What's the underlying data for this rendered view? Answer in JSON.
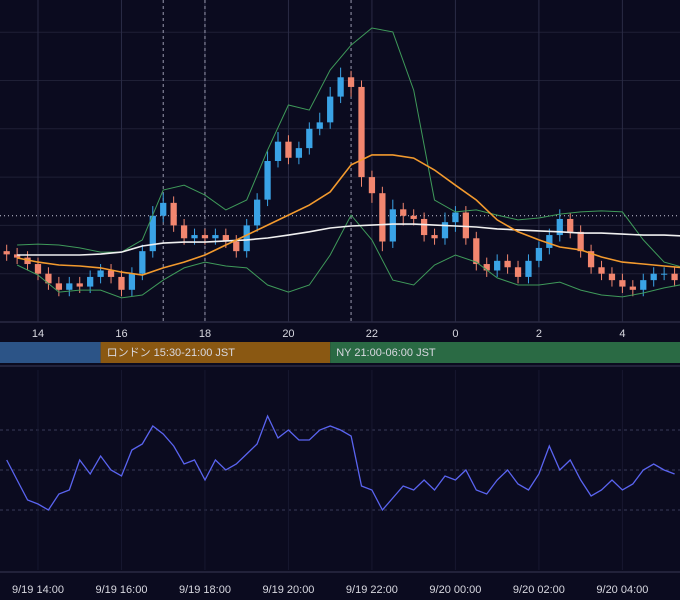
{
  "chart_data": [
    {
      "type": "candlestick",
      "xlim": [
        13.09,
        29.38
      ],
      "ylim": [
        0,
        100
      ],
      "xticks": [
        14,
        16,
        18,
        20,
        22,
        {
          "value": 24,
          "label": "0"
        },
        {
          "value": 26,
          "label": "2"
        },
        {
          "value": 28,
          "label": "4"
        }
      ],
      "ygrid": [
        15,
        30,
        45,
        60,
        75,
        90
      ],
      "grid": true,
      "markers_x": [
        17,
        18,
        21.5
      ],
      "price_line": 33,
      "up_color": "#3aa3e6",
      "down_color": "#f2866f",
      "x": [
        13.25,
        13.5,
        13.75,
        14,
        14.25,
        14.5,
        14.75,
        15,
        15.25,
        15.5,
        15.75,
        16,
        16.25,
        16.5,
        16.75,
        17,
        17.25,
        17.5,
        17.75,
        18,
        18.25,
        18.5,
        18.75,
        19,
        19.25,
        19.5,
        19.75,
        20,
        20.25,
        20.5,
        20.75,
        21,
        21.25,
        21.5,
        21.75,
        22,
        22.25,
        22.5,
        22.75,
        23,
        23.25,
        23.5,
        23.75,
        24,
        24.25,
        24.5,
        24.75,
        25,
        25.25,
        25.5,
        25.75,
        26,
        26.25,
        26.5,
        26.75,
        27,
        27.25,
        27.5,
        27.75,
        28,
        28.25,
        28.5,
        28.75,
        29,
        29.25
      ],
      "open": [
        22,
        21,
        20,
        18,
        15,
        12,
        10,
        12,
        11,
        14,
        16,
        14,
        10,
        15,
        22,
        33,
        37,
        30,
        26,
        27,
        26,
        27,
        25,
        22,
        30,
        38,
        50,
        56,
        51,
        54,
        60,
        62,
        70,
        76,
        73,
        45,
        40,
        25,
        35,
        33,
        32,
        27,
        26,
        31,
        34,
        26,
        18,
        16,
        19,
        17,
        14,
        19,
        23,
        27,
        32,
        28,
        22,
        17,
        15,
        13,
        11,
        10,
        13,
        15,
        15
      ],
      "high": [
        24,
        23,
        22,
        20,
        17,
        14,
        14,
        14,
        16,
        18,
        18,
        16,
        17,
        24,
        36,
        40,
        39,
        32,
        29,
        29,
        29,
        29,
        27,
        32,
        40,
        53,
        59,
        58,
        56,
        62,
        65,
        73,
        79,
        78,
        75,
        47,
        42,
        38,
        37,
        35,
        34,
        29,
        34,
        36,
        36,
        28,
        20,
        21,
        21,
        19,
        21,
        25,
        29,
        35,
        34,
        30,
        24,
        19,
        17,
        15,
        13,
        15,
        17,
        17,
        17
      ],
      "low": [
        19,
        18,
        16,
        13,
        10,
        8,
        8,
        9,
        9,
        12,
        12,
        8,
        8,
        13,
        20,
        31,
        28,
        24,
        24,
        24,
        24,
        23,
        20,
        20,
        28,
        36,
        48,
        49,
        49,
        52,
        58,
        60,
        68,
        70,
        42,
        37,
        22,
        23,
        30,
        30,
        25,
        24,
        24,
        28,
        24,
        16,
        14,
        14,
        15,
        12,
        12,
        17,
        21,
        25,
        26,
        20,
        15,
        13,
        11,
        9,
        8,
        8,
        11,
        13,
        11
      ],
      "close": [
        21,
        20,
        18,
        15,
        12,
        10,
        12,
        11,
        14,
        16,
        14,
        10,
        15,
        22,
        33,
        37,
        30,
        26,
        27,
        26,
        27,
        25,
        22,
        30,
        38,
        50,
        56,
        51,
        54,
        60,
        62,
        70,
        76,
        73,
        45,
        40,
        25,
        35,
        33,
        32,
        27,
        26,
        31,
        34,
        26,
        18,
        16,
        19,
        17,
        14,
        19,
        23,
        27,
        32,
        28,
        22,
        17,
        15,
        13,
        11,
        10,
        13,
        15,
        15,
        13
      ],
      "overlays": [
        {
          "color": "#3f9a5a",
          "x": [
            13.5,
            14,
            14.5,
            15,
            15.5,
            16,
            16.5,
            17,
            17.5,
            18,
            18.5,
            19,
            19.5,
            20,
            20.5,
            21,
            21.5,
            22,
            22.5,
            23,
            23.5,
            24,
            24.5,
            25,
            25.5,
            26,
            26.5,
            27,
            27.5,
            28,
            28.5,
            29,
            29.5
          ],
          "values": [
            23.9,
            24.2,
            23.9,
            23.0,
            21.7,
            21.7,
            25.5,
            41.0,
            42.5,
            39.4,
            34.8,
            37.9,
            53.4,
            67.4,
            65.8,
            78.3,
            86.0,
            91.3,
            90.1,
            72.0,
            37.9,
            34.2,
            34.8,
            33.2,
            31.7,
            32.3,
            33.5,
            34.2,
            34.5,
            34.2,
            25.5,
            18.6,
            16.8
          ]
        },
        {
          "color": "#3f9a5a",
          "x": [
            13.5,
            14,
            14.5,
            15,
            15.5,
            16,
            16.5,
            17,
            17.5,
            18,
            18.5,
            19,
            19.5,
            20,
            20.5,
            21,
            21.5,
            22,
            22.5,
            23,
            23.5,
            24,
            24.5,
            25,
            25.5,
            26,
            26.5,
            27,
            27.5,
            28,
            28.5,
            29,
            29.5
          ],
          "values": [
            17.7,
            14.6,
            9.3,
            9.9,
            9.9,
            7.5,
            8.4,
            13.0,
            16.8,
            18.6,
            17.4,
            16.8,
            11.5,
            9.3,
            11.5,
            20.8,
            33.2,
            25.5,
            13.0,
            11.5,
            17.7,
            20.8,
            18.6,
            13.7,
            11.5,
            11.5,
            12.4,
            9.9,
            8.4,
            7.8,
            9.0,
            10.6,
            11.8
          ]
        },
        {
          "color": "#f0f0f0",
          "x": [
            13.5,
            14,
            14.5,
            15,
            15.5,
            16,
            16.5,
            17,
            17.5,
            18,
            18.5,
            19,
            19.5,
            20,
            20.5,
            21,
            21.5,
            22,
            22.5,
            23,
            23.5,
            24,
            24.5,
            25,
            25.5,
            26,
            26.5,
            27,
            27.5,
            28,
            28.5,
            29,
            29.5
          ],
          "values": [
            20.8,
            20.8,
            20.8,
            20.8,
            21.1,
            21.7,
            23.6,
            24.5,
            24.8,
            24.8,
            25.2,
            25.5,
            26.1,
            27.0,
            28.0,
            29.2,
            29.8,
            30.1,
            30.4,
            30.4,
            30.1,
            29.8,
            29.5,
            28.9,
            28.6,
            28.3,
            28.0,
            27.6,
            27.6,
            27.3,
            27.0,
            27.0,
            26.7
          ]
        },
        {
          "color": "#f39a2e",
          "x": [
            13.5,
            14,
            14.5,
            15,
            15.5,
            16,
            16.5,
            17,
            17.5,
            18,
            18.5,
            19,
            19.5,
            20,
            20.5,
            21,
            21.5,
            22,
            22.5,
            23,
            23.5,
            24,
            24.5,
            25,
            25.5,
            26,
            26.5,
            27,
            27.5,
            28,
            28.5,
            29,
            29.5
          ],
          "values": [
            19.9,
            18.6,
            17.7,
            17.4,
            16.8,
            15.5,
            14.6,
            16.8,
            18.6,
            20.8,
            23.9,
            27.0,
            30.1,
            33.2,
            36.3,
            40.4,
            48.8,
            51.9,
            51.9,
            50.9,
            47.2,
            42.5,
            37.9,
            31.7,
            28.0,
            25.5,
            23.3,
            22.4,
            20.2,
            18.6,
            18.0,
            17.4,
            16.8
          ]
        }
      ],
      "sessions": [
        {
          "end": 15.5,
          "color": "#2c5487"
        },
        {
          "label": "ロンドン 15:30-21:00 JST",
          "start": 15.5,
          "end": 21,
          "color": "#8a5812"
        },
        {
          "label": "NY 21:00-06:00 JST",
          "start": 21,
          "end": 30,
          "color": "#2a6a44"
        }
      ]
    },
    {
      "type": "line",
      "xlim": [
        13.09,
        29.38
      ],
      "ylim": [
        0,
        100
      ],
      "ygrid": [
        30,
        50,
        70
      ],
      "xticks": [
        {
          "value": 14,
          "label": "9/19 14:00"
        },
        {
          "value": 16,
          "label": "9/19 16:00"
        },
        {
          "value": 18,
          "label": "9/19 18:00"
        },
        {
          "value": 20,
          "label": "9/19 20:00"
        },
        {
          "value": 22,
          "label": "9/19 22:00"
        },
        {
          "value": 24,
          "label": "9/20 00:00"
        },
        {
          "value": 26,
          "label": "9/20 02:00"
        },
        {
          "value": 28,
          "label": "9/20 04:00"
        }
      ],
      "color": "#5a64f0",
      "x": [
        13.25,
        13.5,
        13.75,
        14,
        14.25,
        14.5,
        14.75,
        15,
        15.25,
        15.5,
        15.75,
        16,
        16.25,
        16.5,
        16.75,
        17,
        17.25,
        17.5,
        17.75,
        18,
        18.25,
        18.5,
        18.75,
        19,
        19.25,
        19.5,
        19.75,
        20,
        20.25,
        20.5,
        20.75,
        21,
        21.25,
        21.5,
        21.75,
        22,
        22.25,
        22.5,
        22.75,
        23,
        23.25,
        23.5,
        23.75,
        24,
        24.25,
        24.5,
        24.75,
        25,
        25.25,
        25.5,
        25.75,
        26,
        26.25,
        26.5,
        26.75,
        27,
        27.25,
        27.5,
        27.75,
        28,
        28.25,
        28.5,
        28.75,
        29,
        29.25
      ],
      "values": [
        55,
        45,
        35,
        33,
        30,
        38,
        40,
        55,
        48,
        57,
        50,
        47,
        60,
        63,
        72,
        68,
        62,
        53,
        55,
        45,
        55,
        50,
        53,
        58,
        63,
        77,
        66,
        70,
        65,
        65,
        70,
        72,
        70,
        67,
        42,
        40,
        30,
        36,
        42,
        40,
        45,
        40,
        47,
        45,
        50,
        40,
        38,
        45,
        50,
        43,
        40,
        48,
        62,
        50,
        55,
        45,
        37,
        40,
        45,
        40,
        43,
        50,
        53,
        50,
        48
      ]
    }
  ]
}
